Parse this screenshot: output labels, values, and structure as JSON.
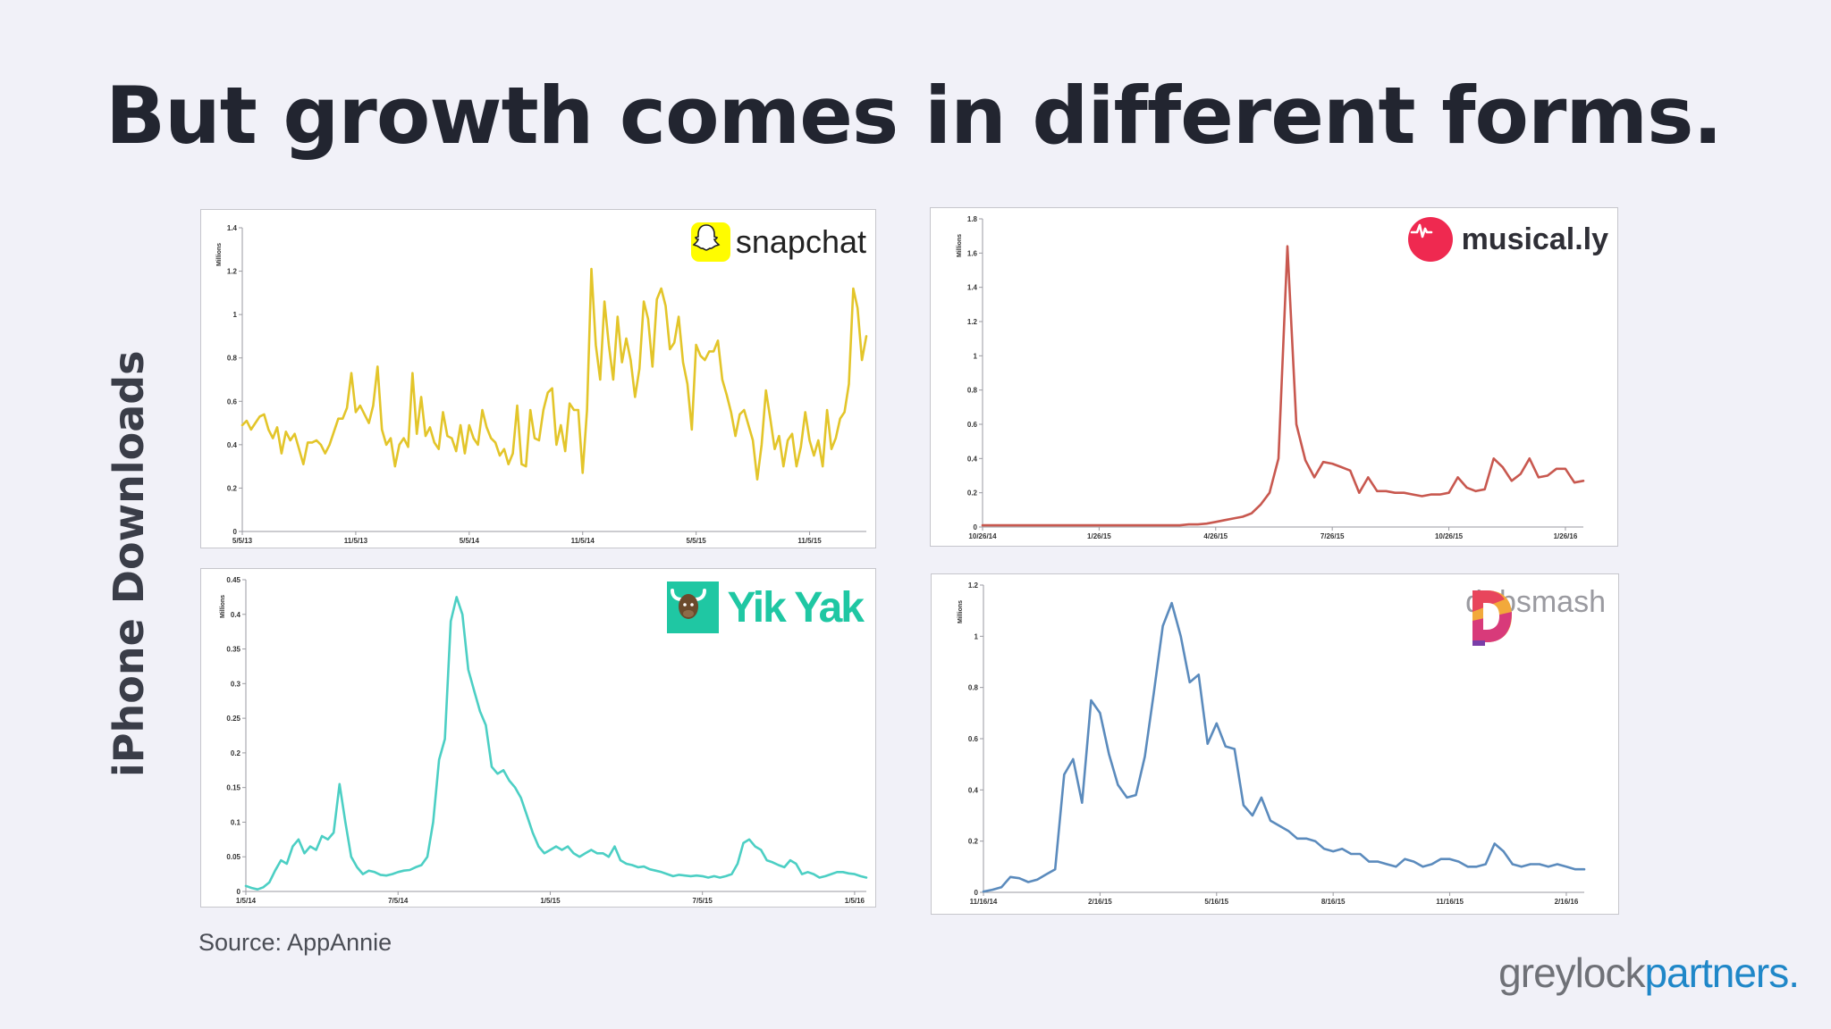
{
  "slide": {
    "title": "But growth comes in different forms.",
    "side_label": "iPhone Downloads",
    "source": "Source: AppAnnie",
    "brand_grey": "greylock",
    "brand_blue": "partners."
  },
  "colors": {
    "background": "#f1f1f8",
    "snapchat": "#e3c52a",
    "musically": "#c8584f",
    "yikyak": "#4ccfc4",
    "dubsmash": "#5b8bbd",
    "brand_blue": "#1f87c8"
  },
  "logos": {
    "snapchat": {
      "text": "snapchat",
      "icon": "ghost-icon"
    },
    "musically": {
      "text": "musical.ly",
      "icon": "music-note-icon"
    },
    "yikyak": {
      "text": "Yik Yak",
      "icon": "yak-icon"
    },
    "dubsmash": {
      "text": "dubsmash",
      "icon": "dubsmash-d-icon"
    }
  },
  "chart_data": [
    {
      "id": "snapchat",
      "type": "line",
      "ylabel": "Millions",
      "ylim": [
        0,
        1.4
      ],
      "yticks": [
        "0",
        "0.2",
        "0.4",
        "0.6",
        "0.8",
        "1",
        "1.2",
        "1.4"
      ],
      "xticks": [
        "5/5/13",
        "11/5/13",
        "5/5/14",
        "11/5/14",
        "5/5/15",
        "11/5/15"
      ],
      "xtick_positions": [
        0,
        26,
        52,
        78,
        104,
        130
      ],
      "series": [
        {
          "color": "#e3c52a",
          "values": [
            0.49,
            0.51,
            0.47,
            0.5,
            0.53,
            0.54,
            0.47,
            0.43,
            0.48,
            0.36,
            0.46,
            0.42,
            0.45,
            0.38,
            0.31,
            0.41,
            0.41,
            0.42,
            0.4,
            0.36,
            0.4,
            0.46,
            0.52,
            0.52,
            0.57,
            0.73,
            0.55,
            0.58,
            0.54,
            0.5,
            0.58,
            0.76,
            0.47,
            0.4,
            0.43,
            0.3,
            0.4,
            0.43,
            0.39,
            0.73,
            0.45,
            0.62,
            0.44,
            0.48,
            0.41,
            0.38,
            0.55,
            0.44,
            0.43,
            0.37,
            0.49,
            0.36,
            0.49,
            0.43,
            0.4,
            0.56,
            0.48,
            0.43,
            0.41,
            0.35,
            0.38,
            0.31,
            0.36,
            0.58,
            0.31,
            0.3,
            0.56,
            0.43,
            0.42,
            0.56,
            0.64,
            0.66,
            0.4,
            0.49,
            0.37,
            0.59,
            0.56,
            0.56,
            0.27,
            0.56,
            1.21,
            0.86,
            0.7,
            1.06,
            0.86,
            0.7,
            0.99,
            0.78,
            0.89,
            0.79,
            0.62,
            0.75,
            1.06,
            0.98,
            0.76,
            1.07,
            1.12,
            1.04,
            0.84,
            0.87,
            0.99,
            0.78,
            0.68,
            0.47,
            0.86,
            0.81,
            0.79,
            0.83,
            0.83,
            0.88,
            0.7,
            0.63,
            0.55,
            0.44,
            0.54,
            0.56,
            0.49,
            0.42,
            0.24,
            0.4,
            0.65,
            0.52,
            0.38,
            0.44,
            0.3,
            0.42,
            0.45,
            0.3,
            0.39,
            0.55,
            0.42,
            0.35,
            0.42,
            0.3,
            0.56,
            0.38,
            0.43,
            0.52,
            0.55,
            0.68,
            1.12,
            1.03,
            0.79,
            0.9
          ]
        }
      ]
    },
    {
      "id": "musically",
      "type": "line",
      "ylabel": "Millions",
      "ylim": [
        0,
        1.8
      ],
      "yticks": [
        "0",
        "0.2",
        "0.4",
        "0.6",
        "0.8",
        "1",
        "1.2",
        "1.4",
        "1.6",
        "1.8"
      ],
      "xticks": [
        "10/26/14",
        "1/26/15",
        "4/26/15",
        "7/26/15",
        "10/26/15",
        "1/26/16"
      ],
      "xtick_positions": [
        0,
        13,
        26,
        39,
        52,
        65
      ],
      "series": [
        {
          "color": "#c8584f",
          "values": [
            0.01,
            0.01,
            0.01,
            0.01,
            0.01,
            0.01,
            0.01,
            0.01,
            0.01,
            0.01,
            0.01,
            0.01,
            0.01,
            0.01,
            0.01,
            0.01,
            0.01,
            0.01,
            0.01,
            0.01,
            0.01,
            0.01,
            0.01,
            0.015,
            0.015,
            0.02,
            0.03,
            0.04,
            0.05,
            0.06,
            0.08,
            0.13,
            0.2,
            0.4,
            1.64,
            0.6,
            0.39,
            0.29,
            0.38,
            0.37,
            0.35,
            0.33,
            0.2,
            0.29,
            0.21,
            0.21,
            0.2,
            0.2,
            0.19,
            0.18,
            0.19,
            0.19,
            0.2,
            0.29,
            0.23,
            0.21,
            0.22,
            0.4,
            0.35,
            0.27,
            0.31,
            0.4,
            0.29,
            0.3,
            0.34,
            0.34,
            0.26,
            0.27
          ]
        }
      ]
    },
    {
      "id": "yikyak",
      "type": "line",
      "ylabel": "Millions",
      "ylim": [
        0,
        0.45
      ],
      "yticks": [
        "0",
        "0.05",
        "0.1",
        "0.15",
        "0.2",
        "0.25",
        "0.3",
        "0.35",
        "0.4",
        "0.45"
      ],
      "xticks": [
        "1/5/14",
        "7/5/14",
        "1/5/15",
        "7/5/15",
        "1/5/16"
      ],
      "xtick_positions": [
        0,
        26,
        52,
        78,
        104
      ],
      "series": [
        {
          "color": "#4ccfc4",
          "values": [
            0.008,
            0.005,
            0.003,
            0.006,
            0.013,
            0.03,
            0.045,
            0.04,
            0.065,
            0.075,
            0.055,
            0.065,
            0.06,
            0.08,
            0.075,
            0.085,
            0.155,
            0.1,
            0.05,
            0.035,
            0.025,
            0.03,
            0.028,
            0.024,
            0.023,
            0.025,
            0.028,
            0.03,
            0.031,
            0.035,
            0.038,
            0.05,
            0.1,
            0.19,
            0.22,
            0.39,
            0.425,
            0.4,
            0.32,
            0.29,
            0.26,
            0.24,
            0.18,
            0.17,
            0.175,
            0.16,
            0.15,
            0.135,
            0.11,
            0.085,
            0.065,
            0.055,
            0.06,
            0.065,
            0.06,
            0.065,
            0.055,
            0.05,
            0.055,
            0.06,
            0.055,
            0.055,
            0.05,
            0.065,
            0.045,
            0.04,
            0.038,
            0.035,
            0.036,
            0.032,
            0.03,
            0.028,
            0.025,
            0.022,
            0.024,
            0.023,
            0.022,
            0.023,
            0.022,
            0.02,
            0.022,
            0.02,
            0.022,
            0.025,
            0.04,
            0.07,
            0.075,
            0.065,
            0.06,
            0.045,
            0.042,
            0.038,
            0.035,
            0.045,
            0.04,
            0.025,
            0.028,
            0.025,
            0.02,
            0.022,
            0.025,
            0.028,
            0.028,
            0.026,
            0.025,
            0.022,
            0.02
          ]
        }
      ]
    },
    {
      "id": "dubsmash",
      "type": "line",
      "ylabel": "Millions",
      "ylim": [
        0,
        1.2
      ],
      "yticks": [
        "0",
        "0.2",
        "0.4",
        "0.6",
        "0.8",
        "1",
        "1.2"
      ],
      "xticks": [
        "11/16/14",
        "2/16/15",
        "5/16/15",
        "8/16/15",
        "11/16/15",
        "2/16/16"
      ],
      "xtick_positions": [
        0,
        13,
        26,
        39,
        52,
        65
      ],
      "series": [
        {
          "color": "#5b8bbd",
          "values": [
            0.003,
            0.01,
            0.02,
            0.06,
            0.055,
            0.04,
            0.05,
            0.07,
            0.09,
            0.46,
            0.52,
            0.35,
            0.75,
            0.7,
            0.54,
            0.42,
            0.37,
            0.38,
            0.53,
            0.78,
            1.04,
            1.13,
            1.0,
            0.82,
            0.85,
            0.58,
            0.66,
            0.57,
            0.56,
            0.34,
            0.3,
            0.37,
            0.28,
            0.26,
            0.24,
            0.21,
            0.21,
            0.2,
            0.17,
            0.16,
            0.17,
            0.15,
            0.15,
            0.12,
            0.12,
            0.11,
            0.1,
            0.13,
            0.12,
            0.1,
            0.11,
            0.13,
            0.13,
            0.12,
            0.1,
            0.1,
            0.11,
            0.19,
            0.16,
            0.11,
            0.1,
            0.11,
            0.11,
            0.1,
            0.11,
            0.1,
            0.09,
            0.09
          ]
        }
      ]
    }
  ]
}
